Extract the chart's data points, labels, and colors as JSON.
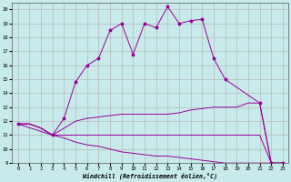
{
  "xlabel": "Windchill (Refroidissement éolien,°C)",
  "bg_color": "#c8eaea",
  "line_color": "#990099",
  "xlim": [
    -0.5,
    23.5
  ],
  "ylim": [
    9,
    20.5
  ],
  "xticks": [
    0,
    1,
    2,
    3,
    4,
    5,
    6,
    7,
    8,
    9,
    10,
    11,
    12,
    13,
    14,
    15,
    16,
    17,
    18,
    19,
    20,
    21,
    22,
    23
  ],
  "yticks": [
    9,
    10,
    11,
    12,
    13,
    14,
    15,
    16,
    17,
    18,
    19,
    20
  ],
  "line_peak_x": [
    0,
    3,
    4,
    5,
    6,
    7,
    8,
    9,
    10,
    11,
    12,
    13,
    14,
    15,
    16,
    17,
    18,
    21,
    22,
    23
  ],
  "line_peak_y": [
    11.8,
    11.0,
    12.2,
    14.8,
    16.0,
    16.5,
    18.5,
    19.0,
    16.8,
    19.0,
    18.7,
    20.2,
    19.0,
    19.2,
    19.3,
    16.5,
    15.0,
    13.3,
    9.0,
    9.0
  ],
  "line_upper_x": [
    0,
    1,
    2,
    3,
    4,
    5,
    6,
    7,
    8,
    9,
    10,
    11,
    12,
    13,
    14,
    15,
    16,
    17,
    18,
    19,
    20,
    21,
    22,
    23
  ],
  "line_upper_y": [
    11.8,
    11.8,
    11.5,
    11.0,
    11.5,
    12.0,
    12.2,
    12.3,
    12.4,
    12.5,
    12.5,
    12.5,
    12.5,
    12.5,
    12.6,
    12.8,
    12.9,
    13.0,
    13.0,
    13.0,
    13.3,
    13.3,
    9.0,
    9.0
  ],
  "line_flat_x": [
    0,
    1,
    2,
    3,
    4,
    5,
    6,
    7,
    8,
    9,
    10,
    11,
    12,
    13,
    14,
    15,
    16,
    17,
    18,
    19,
    20,
    21,
    22,
    23
  ],
  "line_flat_y": [
    11.8,
    11.8,
    11.5,
    11.0,
    11.0,
    11.0,
    11.0,
    11.0,
    11.0,
    11.0,
    11.0,
    11.0,
    11.0,
    11.0,
    11.0,
    11.0,
    11.0,
    11.0,
    11.0,
    11.0,
    11.0,
    11.0,
    9.0,
    9.0
  ],
  "line_lower_x": [
    0,
    1,
    2,
    3,
    4,
    5,
    6,
    7,
    8,
    9,
    10,
    11,
    12,
    13,
    14,
    15,
    16,
    17,
    18,
    19,
    20,
    21,
    22,
    23
  ],
  "line_lower_y": [
    11.8,
    11.8,
    11.5,
    11.0,
    10.8,
    10.5,
    10.3,
    10.2,
    10.0,
    9.8,
    9.7,
    9.6,
    9.5,
    9.5,
    9.4,
    9.3,
    9.2,
    9.1,
    9.0,
    9.0,
    9.0,
    9.0,
    9.0,
    9.0
  ],
  "grid_color": "#b0b0b0",
  "marker": "*",
  "markersize": 2.5
}
